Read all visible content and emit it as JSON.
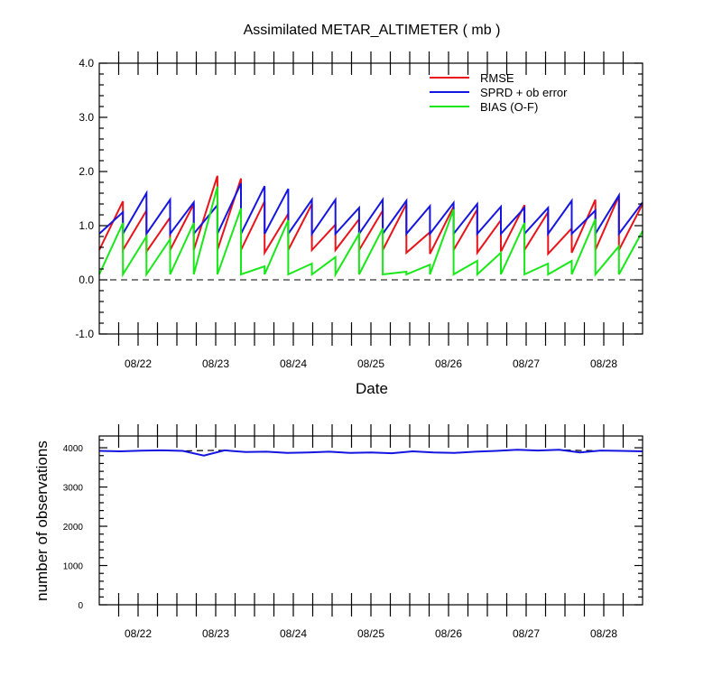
{
  "chart_data": [
    {
      "type": "line",
      "title": "Assimilated METAR_ALTIMETER ( mb )",
      "xlabel": "Date",
      "ylabel": "",
      "ylim": [
        -1.0,
        4.0
      ],
      "yticks": [
        "-1.0",
        "0.0",
        "1.0",
        "2.0",
        "3.0",
        "4.0"
      ],
      "xtick_labels": [
        "08/22",
        "08/23",
        "08/24",
        "08/25",
        "08/26",
        "08/27",
        "08/28"
      ],
      "xlim_days": [
        21.5,
        28.5
      ],
      "zero_line": "dashed",
      "legend_position": "top-right",
      "series": [
        {
          "name": "RMSE",
          "color": "#e8141b",
          "cycles": [
            [
              0.55,
              1.45
            ],
            [
              0.55,
              1.28
            ],
            [
              0.52,
              1.15
            ],
            [
              0.55,
              1.4
            ],
            [
              0.55,
              1.92
            ],
            [
              0.55,
              1.87
            ],
            [
              0.55,
              1.45
            ],
            [
              0.5,
              1.22
            ],
            [
              0.55,
              1.4
            ],
            [
              0.55,
              1.02
            ],
            [
              0.55,
              1.12
            ],
            [
              0.55,
              1.28
            ],
            [
              0.55,
              1.4
            ],
            [
              0.5,
              0.88
            ],
            [
              0.48,
              1.35
            ],
            [
              0.55,
              1.3
            ],
            [
              0.5,
              1.1
            ],
            [
              0.52,
              1.38
            ],
            [
              0.55,
              1.25
            ],
            [
              0.48,
              0.95
            ],
            [
              0.5,
              1.48
            ],
            [
              0.55,
              1.55
            ],
            [
              0.55,
              1.4
            ]
          ]
        },
        {
          "name": "SPRD + ob error",
          "color": "#1515e0",
          "cycles": [
            [
              0.85,
              1.25
            ],
            [
              0.85,
              1.6
            ],
            [
              0.85,
              1.48
            ],
            [
              0.85,
              1.43
            ],
            [
              0.85,
              1.38
            ],
            [
              0.85,
              1.78
            ],
            [
              0.85,
              1.73
            ],
            [
              0.85,
              1.68
            ],
            [
              0.85,
              1.48
            ],
            [
              0.85,
              1.48
            ],
            [
              0.85,
              1.33
            ],
            [
              0.85,
              1.48
            ],
            [
              0.85,
              1.46
            ],
            [
              0.85,
              1.36
            ],
            [
              0.85,
              1.42
            ],
            [
              0.85,
              1.4
            ],
            [
              0.85,
              1.35
            ],
            [
              0.85,
              1.33
            ],
            [
              0.85,
              1.33
            ],
            [
              0.85,
              1.46
            ],
            [
              0.85,
              1.28
            ],
            [
              0.85,
              1.56
            ],
            [
              0.85,
              1.43
            ]
          ]
        },
        {
          "name": "BIAS (O-F)",
          "color": "#18e818",
          "cycles": [
            [
              0.1,
              1.05
            ],
            [
              0.1,
              0.8
            ],
            [
              0.1,
              0.75
            ],
            [
              0.1,
              1.05
            ],
            [
              0.1,
              1.72
            ],
            [
              0.1,
              1.32
            ],
            [
              0.1,
              0.25
            ],
            [
              0.1,
              1.1
            ],
            [
              0.1,
              0.3
            ],
            [
              0.1,
              0.42
            ],
            [
              0.1,
              0.85
            ],
            [
              0.1,
              0.95
            ],
            [
              0.1,
              0.15
            ],
            [
              0.1,
              0.28
            ],
            [
              0.1,
              1.3
            ],
            [
              0.1,
              0.35
            ],
            [
              0.1,
              0.5
            ],
            [
              0.1,
              1.05
            ],
            [
              0.1,
              0.3
            ],
            [
              0.1,
              0.35
            ],
            [
              0.1,
              1.12
            ],
            [
              0.1,
              0.62
            ],
            [
              0.1,
              0.9
            ]
          ]
        }
      ]
    },
    {
      "type": "line",
      "title": "",
      "xlabel": "",
      "ylabel": "number of observations",
      "ylim": [
        0,
        4300
      ],
      "yticks": [
        "0",
        "1000",
        "2000",
        "3000",
        "4000"
      ],
      "xtick_labels": [
        "08/22",
        "08/23",
        "08/24",
        "08/25",
        "08/26",
        "08/27",
        "08/28"
      ],
      "xlim_days": [
        21.5,
        28.5
      ],
      "series": [
        {
          "name": "",
          "color": "#1515e0",
          "style": "solid",
          "values": [
            3920,
            3910,
            3925,
            3935,
            3920,
            3800,
            3935,
            3890,
            3900,
            3870,
            3880,
            3900,
            3870,
            3880,
            3860,
            3910,
            3880,
            3870,
            3900,
            3920,
            3950,
            3930,
            3950,
            3880,
            3930,
            3920,
            3910
          ]
        },
        {
          "name": "",
          "color": "#000000",
          "style": "dashed",
          "values": [
            3920,
            3910,
            3925,
            3935,
            3920,
            3930,
            3935,
            3890,
            3900,
            3870,
            3880,
            3900,
            3870,
            3880,
            3860,
            3910,
            3880,
            3870,
            3900,
            3920,
            3950,
            3930,
            3950,
            3930,
            3930,
            3920,
            3910
          ]
        }
      ]
    }
  ]
}
